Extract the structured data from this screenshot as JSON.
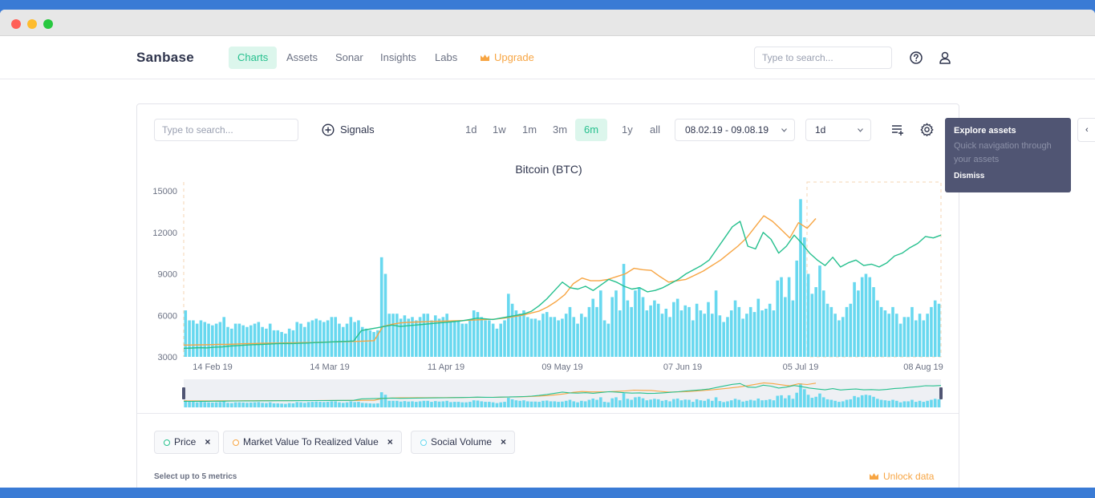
{
  "nav": {
    "logo": "Sanbase",
    "links": [
      "Charts",
      "Assets",
      "Sonar",
      "Insights",
      "Labs"
    ],
    "upgrade": "Upgrade",
    "search_placeholder": "Type to search..."
  },
  "toolbar": {
    "search_placeholder": "Type to search...",
    "signals_label": "Signals",
    "periods": [
      "1d",
      "1w",
      "1m",
      "3m",
      "6m",
      "1y",
      "all"
    ],
    "active_period": "6m",
    "date_range": "08.02.19 - 09.08.19",
    "interval": "1d"
  },
  "tooltip": {
    "title": "Explore assets",
    "text": "Quick navigation through your assets",
    "dismiss": "Dismiss"
  },
  "metrics": {
    "chips": [
      "Price",
      "Market Value To Realized Value",
      "Social Volume"
    ],
    "select_note": "Select up to 5 metrics",
    "unlock": "Unlock data"
  },
  "colors": {
    "price": "#26c08e",
    "mvrv": "#f7a543",
    "social": "#68d8ef",
    "accent": "#26c08e"
  },
  "chart_data": {
    "type": "line",
    "title": "Bitcoin (BTC)",
    "y_ticks": [
      "15000",
      "12000",
      "9000",
      "6000",
      "3000"
    ],
    "x_ticks": [
      "14 Feb 19",
      "14 Mar 19",
      "11 Apr 19",
      "09 May 19",
      "07 Jun 19",
      "05 Jul 19",
      "08 Aug 19"
    ],
    "ylim": [
      3000,
      15000
    ],
    "series": [
      {
        "name": "Price",
        "values": [
          3620,
          3640,
          3660,
          3650,
          3700,
          3720,
          3780,
          3820,
          3850,
          3880,
          3900,
          3920,
          3950,
          3970,
          3960,
          3980,
          4000,
          4030,
          4050,
          4080,
          4100,
          4120,
          4150,
          4900,
          5000,
          5100,
          5200,
          5300,
          5200,
          5250,
          5300,
          5350,
          5400,
          5450,
          5500,
          5550,
          5600,
          5700,
          5800,
          5750,
          5700,
          5800,
          5900,
          6000,
          6100,
          6300,
          6700,
          7200,
          7800,
          8400,
          8000,
          7900,
          8100,
          7800,
          8200,
          8600,
          8400,
          8100,
          7900,
          8000,
          7700,
          7800,
          8000,
          8300,
          8600,
          9000,
          9300,
          9600,
          10000,
          10800,
          11600,
          12400,
          12800,
          11000,
          10800,
          12000,
          11500,
          10500,
          11000,
          11800,
          11200,
          10500,
          10000,
          9600,
          10200,
          9500,
          9800,
          10000,
          9600,
          9700,
          9500,
          9800,
          10300,
          10500,
          10900,
          11200,
          11700,
          11600,
          11800
        ],
        "gaps": false
      },
      {
        "name": "Market Value To Realized Value",
        "values": [
          3850,
          3860,
          3870,
          3880,
          3900,
          3900,
          3920,
          3950,
          3960,
          3980,
          3990,
          4000,
          4010,
          4020,
          4030,
          4040,
          4060,
          4080,
          4090,
          4110,
          4120,
          4140,
          4170,
          5200,
          5350,
          5450,
          5500,
          5520,
          5540,
          5560,
          5580,
          5600,
          5620,
          5650,
          5680,
          5700,
          5730,
          5800,
          5900,
          6000,
          6150,
          6300,
          6600,
          7000,
          7500,
          8300,
          8700,
          8500,
          8500,
          8600,
          8800,
          9000,
          9400,
          9300,
          9250,
          8800,
          8400,
          8500,
          8600,
          8900,
          9200,
          9600,
          10000,
          10500,
          11000,
          11600,
          12400,
          13200,
          12800,
          12200,
          11600,
          12700,
          12300,
          13000
        ]
      },
      {
        "name": "Social Volume",
        "values": [
          28,
          22,
          22,
          20,
          22,
          21,
          20,
          19,
          20,
          21,
          24,
          18,
          17,
          20,
          20,
          19,
          18,
          19,
          20,
          21,
          18,
          17,
          20,
          16,
          16,
          15,
          14,
          17,
          16,
          21,
          20,
          18,
          21,
          22,
          23,
          22,
          21,
          22,
          24,
          24,
          20,
          18,
          20,
          24,
          21,
          22,
          18,
          17,
          16,
          15,
          16,
          60,
          50,
          26,
          26,
          26,
          23,
          25,
          23,
          24,
          22,
          24,
          26,
          26,
          22,
          25,
          23,
          24,
          26,
          21,
          22,
          22,
          20,
          20,
          22,
          28,
          27,
          24,
          22,
          22,
          20,
          17,
          20,
          22,
          38,
          32,
          28,
          26,
          28,
          24,
          23,
          23,
          22,
          26,
          27,
          24,
          24,
          22,
          23,
          26,
          30,
          24,
          20,
          26,
          24,
          30,
          35,
          30,
          40,
          22,
          20,
          36,
          40,
          28,
          56,
          34,
          30,
          40,
          42,
          36,
          28,
          31,
          34,
          32,
          26,
          29,
          24,
          33,
          35,
          28,
          31,
          30,
          22,
          32,
          28,
          26,
          33,
          26,
          40,
          25,
          21,
          24,
          28,
          34,
          30,
          23,
          26,
          30,
          27,
          35,
          28,
          29,
          32,
          28,
          46,
          48,
          36,
          48,
          34,
          58,
          95,
          72,
          50,
          38,
          42,
          55,
          40,
          32,
          30,
          26,
          22,
          24,
          30,
          32,
          45,
          40,
          48,
          50,
          48,
          42,
          34,
          30,
          28,
          26,
          30,
          26,
          20,
          24,
          24,
          30,
          22,
          26,
          22,
          26,
          30,
          34,
          32
        ],
        "ylim": [
          0,
          100
        ]
      }
    ]
  }
}
